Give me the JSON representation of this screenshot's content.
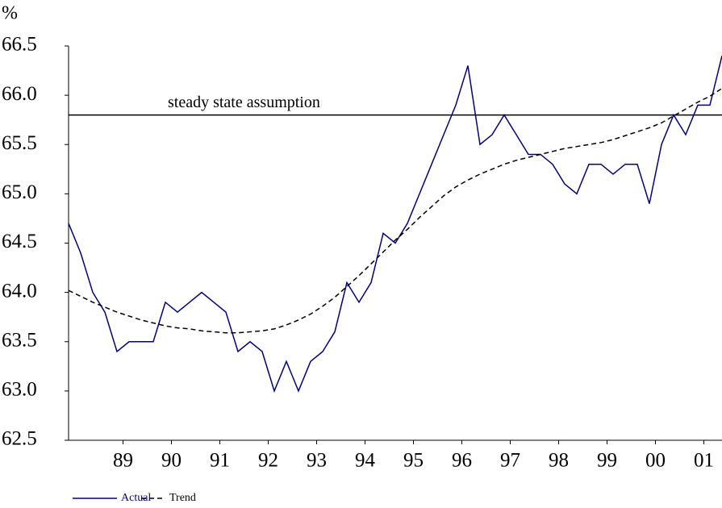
{
  "chart_data": {
    "type": "line",
    "y_unit": "%",
    "x": [
      1988.375,
      1988.625,
      1988.875,
      1989.125,
      1989.375,
      1989.625,
      1989.875,
      1990.125,
      1990.375,
      1990.625,
      1990.875,
      1991.125,
      1991.375,
      1991.625,
      1991.875,
      1992.125,
      1992.375,
      1992.625,
      1992.875,
      1993.125,
      1993.375,
      1993.625,
      1993.875,
      1994.125,
      1994.375,
      1994.625,
      1994.875,
      1995.125,
      1995.375,
      1995.625,
      1995.875,
      1996.125,
      1996.375,
      1996.625,
      1996.875,
      1997.125,
      1997.375,
      1997.625,
      1997.875,
      1998.125,
      1998.375,
      1998.625,
      1998.875,
      1999.125,
      1999.375,
      1999.625,
      1999.875,
      2000.125,
      2000.375,
      2000.625,
      2000.875,
      2001.125,
      2001.375,
      2001.625,
      2001.875
    ],
    "series": [
      {
        "name": "Actual",
        "color": "#000080",
        "dashed": false,
        "values": [
          64.7,
          64.4,
          64.0,
          63.8,
          63.4,
          63.5,
          63.5,
          63.5,
          63.9,
          63.8,
          63.9,
          64.0,
          63.9,
          63.8,
          63.4,
          63.5,
          63.4,
          63.0,
          63.3,
          63.0,
          63.3,
          63.4,
          63.6,
          64.1,
          63.9,
          64.1,
          64.6,
          64.5,
          64.7,
          65.0,
          65.3,
          65.6,
          65.9,
          66.3,
          65.5,
          65.6,
          65.8,
          65.6,
          65.4,
          65.4,
          65.3,
          65.1,
          65.0,
          65.3,
          65.3,
          65.2,
          65.3,
          65.3,
          64.9,
          65.5,
          65.8,
          65.6,
          65.9,
          65.9,
          66.4
        ]
      },
      {
        "name": "Trend",
        "color": "#000000",
        "dashed": true,
        "values": [
          64.02,
          63.96,
          63.9,
          63.85,
          63.8,
          63.76,
          63.72,
          63.69,
          63.66,
          63.64,
          63.63,
          63.61,
          63.6,
          63.59,
          63.59,
          63.6,
          63.61,
          63.63,
          63.67,
          63.72,
          63.78,
          63.86,
          63.95,
          64.06,
          64.17,
          64.29,
          64.41,
          64.53,
          64.64,
          64.76,
          64.87,
          64.98,
          65.07,
          65.14,
          65.2,
          65.25,
          65.3,
          65.34,
          65.37,
          65.4,
          65.43,
          65.46,
          65.48,
          65.5,
          65.52,
          65.55,
          65.59,
          65.63,
          65.67,
          65.72,
          65.79,
          65.86,
          65.93,
          65.99,
          66.07
        ]
      }
    ],
    "reference_line": {
      "value": 65.8,
      "label": "steady state assumption",
      "color": "#000000"
    },
    "xlim": [
      1988.375,
      2001.875
    ],
    "xticks": [
      {
        "value": 1989.5,
        "label": "89"
      },
      {
        "value": 1990.5,
        "label": "90"
      },
      {
        "value": 1991.5,
        "label": "91"
      },
      {
        "value": 1992.5,
        "label": "92"
      },
      {
        "value": 1993.5,
        "label": "93"
      },
      {
        "value": 1994.5,
        "label": "94"
      },
      {
        "value": 1995.5,
        "label": "95"
      },
      {
        "value": 1996.5,
        "label": "96"
      },
      {
        "value": 1997.5,
        "label": "97"
      },
      {
        "value": 1998.5,
        "label": "98"
      },
      {
        "value": 1999.5,
        "label": "99"
      },
      {
        "value": 2000.5,
        "label": "00"
      },
      {
        "value": 2001.5,
        "label": "01"
      }
    ],
    "ylim": [
      62.5,
      66.5
    ],
    "yticks": [
      62.5,
      {
        "value": 63,
        "label": "63.0"
      },
      63.5,
      {
        "value": 64,
        "label": "64.0"
      },
      64.5,
      {
        "value": 65,
        "label": "65.0"
      },
      65.5,
      {
        "value": 66,
        "label": "66.0"
      },
      66.5
    ],
    "grid": false,
    "legend": "bottom-left"
  }
}
